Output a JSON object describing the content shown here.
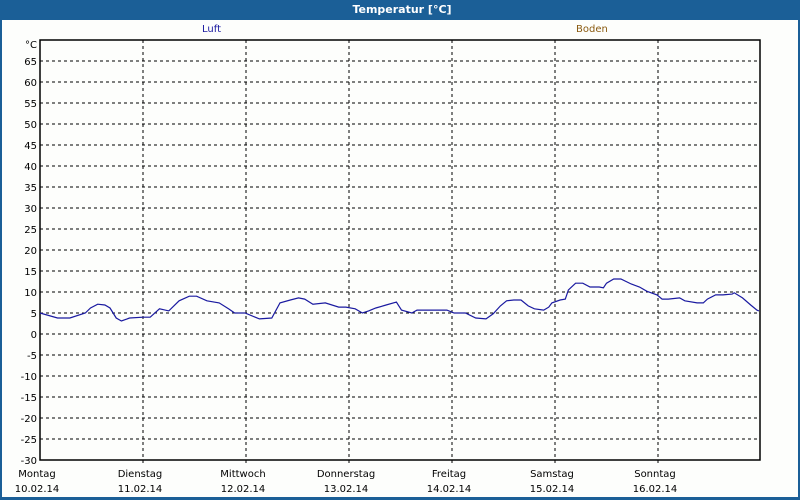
{
  "window": {
    "title": "Temperatur [°C]"
  },
  "legend": [
    {
      "label": "Luft",
      "color": "#1a1aa0"
    },
    {
      "label": "Boden",
      "color": "#8a5a10"
    }
  ],
  "chart_data": {
    "type": "line",
    "title": "Temperatur [°C]",
    "ylabel": "°C",
    "xlabel": "",
    "ylim": [
      -30,
      70
    ],
    "yticks": [
      65,
      60,
      55,
      50,
      45,
      40,
      35,
      30,
      25,
      20,
      15,
      10,
      5,
      0,
      -5,
      -10,
      -15,
      -20,
      -25,
      -30
    ],
    "grid": true,
    "legend_position": "top",
    "x_categories": [
      {
        "day": "Montag",
        "date": "10.02.14"
      },
      {
        "day": "Dienstag",
        "date": "11.02.14"
      },
      {
        "day": "Mittwoch",
        "date": "12.02.14"
      },
      {
        "day": "Donnerstag",
        "date": "13.02.14"
      },
      {
        "day": "Freitag",
        "date": "14.02.14"
      },
      {
        "day": "Samstag",
        "date": "15.02.14"
      },
      {
        "day": "Sonntag",
        "date": "16.02.14"
      }
    ],
    "series": [
      {
        "name": "Luft",
        "color": "#1a1aa0",
        "x_days": [
          0,
          0.17,
          0.29,
          0.44,
          0.49,
          0.56,
          0.63,
          0.68,
          0.74,
          0.79,
          0.87,
          1.0,
          1.07,
          1.16,
          1.25,
          1.35,
          1.45,
          1.52,
          1.62,
          1.74,
          1.83,
          1.89,
          1.99,
          2.13,
          2.25,
          2.33,
          2.43,
          2.51,
          2.57,
          2.65,
          2.77,
          2.9,
          2.97,
          3.06,
          3.13,
          3.19,
          3.26,
          3.36,
          3.46,
          3.51,
          3.61,
          3.66,
          3.76,
          3.95,
          4.02,
          4.13,
          4.23,
          4.33,
          4.4,
          4.47,
          4.53,
          4.6,
          4.67,
          4.74,
          4.8,
          4.89,
          4.94,
          4.97,
          5.05,
          5.1,
          5.13,
          5.2,
          5.27,
          5.34,
          5.43,
          5.47,
          5.5,
          5.57,
          5.64,
          5.74,
          5.82,
          5.89,
          5.99,
          6.04,
          6.1,
          6.21,
          6.26,
          6.38,
          6.44,
          6.48,
          6.56,
          6.63,
          6.72,
          6.74,
          6.82,
          6.9,
          6.96,
          6.98
        ],
        "values": [
          5.0,
          3.8,
          3.8,
          5.0,
          6.2,
          7.1,
          6.9,
          6.2,
          3.8,
          3.1,
          3.8,
          4.0,
          4.0,
          6.0,
          5.5,
          7.9,
          9.0,
          9.0,
          7.9,
          7.4,
          6.0,
          5.0,
          5.0,
          3.6,
          3.8,
          7.4,
          8.1,
          8.6,
          8.3,
          7.1,
          7.4,
          6.4,
          6.4,
          6.0,
          5.0,
          5.5,
          6.2,
          6.9,
          7.6,
          5.7,
          5.0,
          5.7,
          5.7,
          5.7,
          5.0,
          5.0,
          3.8,
          3.6,
          4.8,
          6.7,
          7.9,
          8.1,
          8.1,
          6.7,
          6.0,
          5.7,
          6.4,
          7.4,
          8.1,
          8.3,
          10.5,
          12.1,
          12.1,
          11.2,
          11.2,
          11.0,
          12.1,
          13.1,
          13.1,
          11.9,
          11.2,
          10.2,
          9.3,
          8.3,
          8.3,
          8.6,
          7.9,
          7.4,
          7.4,
          8.3,
          9.3,
          9.3,
          9.5,
          9.8,
          8.6,
          6.9,
          5.7,
          5.5
        ]
      },
      {
        "name": "Boden",
        "color": "#8a5a10",
        "x_days": [],
        "values": []
      }
    ]
  }
}
